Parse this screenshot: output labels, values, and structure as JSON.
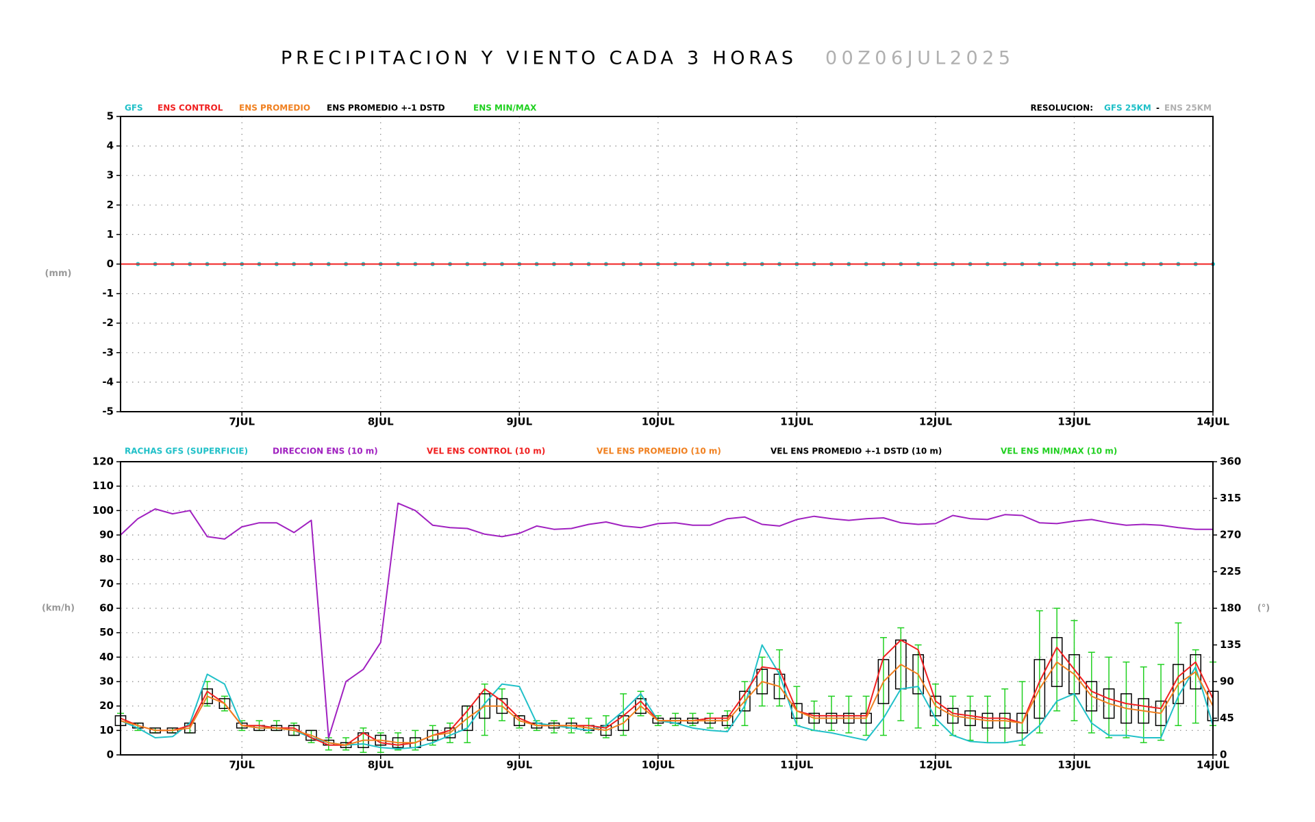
{
  "chart_data": [
    {
      "type": "line",
      "title": "PRECIPITACION Y VIENTO CADA 3 HORAS",
      "subtitle": "00Z06JUL2025",
      "categories": [
        null,
        null,
        null,
        null,
        null,
        null,
        null,
        "7JUL",
        null,
        null,
        null,
        null,
        null,
        null,
        null,
        "8JUL",
        null,
        null,
        null,
        null,
        null,
        null,
        null,
        "9JUL",
        null,
        null,
        null,
        null,
        null,
        null,
        null,
        "10JUL",
        null,
        null,
        null,
        null,
        null,
        null,
        null,
        "11JUL",
        null,
        null,
        null,
        null,
        null,
        null,
        null,
        "12JUL",
        null,
        null,
        null,
        null,
        null,
        null,
        null,
        "13JUL",
        null,
        null,
        null,
        null,
        null,
        null,
        null,
        "14JUL"
      ],
      "ylabel": "(mm)",
      "ylim": [
        -5,
        5
      ],
      "yticks": [
        -5,
        -4,
        -3,
        -2,
        -1,
        0,
        1,
        2,
        3,
        4,
        5
      ],
      "grid": true,
      "resolution": {
        "label": "RESOLUCION:",
        "gfs": "GFS 25KM",
        "sep": "-",
        "ens": "ENS 25KM",
        "ens_color": "#b0b0b0"
      },
      "series": [
        {
          "name": "GFS",
          "color": "#20c0c8",
          "markers": true,
          "values": [
            null,
            0,
            0,
            0,
            0,
            0,
            0,
            0,
            0,
            0,
            0,
            0,
            0,
            0,
            0,
            0,
            0,
            0,
            0,
            0,
            0,
            0,
            0,
            0,
            0,
            0,
            0,
            0,
            0,
            0,
            0,
            0,
            0,
            0,
            0,
            0,
            0,
            0,
            0,
            0,
            0,
            0,
            0,
            0,
            0,
            0,
            0,
            0,
            0,
            0,
            0,
            0,
            0,
            0,
            0,
            0,
            0,
            0,
            0,
            0,
            0,
            0,
            0,
            0
          ]
        },
        {
          "name": "ENS CONTROL",
          "color": "#f02020",
          "values": [
            0,
            0,
            0,
            0,
            0,
            0,
            0,
            0,
            0,
            0,
            0,
            0,
            0,
            0,
            0,
            0,
            0,
            0,
            0,
            0,
            0,
            0,
            0,
            0,
            0,
            0,
            0,
            0,
            0,
            0,
            0,
            0,
            0,
            0,
            0,
            0,
            0,
            0,
            0,
            0,
            0,
            0,
            0,
            0,
            0,
            0,
            0,
            0,
            0,
            0,
            0,
            0,
            0,
            0,
            0,
            0,
            0,
            0,
            0,
            0,
            0,
            0,
            0,
            0
          ]
        },
        {
          "name": "ENS PROMEDIO",
          "color": "#f08020"
        },
        {
          "name": "ENS PROMEDIO +-1 DSTD",
          "color": "#000000"
        },
        {
          "name": "ENS MIN/MAX",
          "color": "#20d020"
        }
      ]
    },
    {
      "type": "line",
      "categories": [
        null,
        null,
        null,
        null,
        null,
        null,
        null,
        "7JUL",
        null,
        null,
        null,
        null,
        null,
        null,
        null,
        "8JUL",
        null,
        null,
        null,
        null,
        null,
        null,
        null,
        "9JUL",
        null,
        null,
        null,
        null,
        null,
        null,
        null,
        "10JUL",
        null,
        null,
        null,
        null,
        null,
        null,
        null,
        "11JUL",
        null,
        null,
        null,
        null,
        null,
        null,
        null,
        "12JUL",
        null,
        null,
        null,
        null,
        null,
        null,
        null,
        "13JUL",
        null,
        null,
        null,
        null,
        null,
        null,
        null,
        "14JUL"
      ],
      "ylabel": "(km/h)",
      "y2label": "(°)",
      "ylim": [
        0,
        120
      ],
      "yticks": [
        0,
        10,
        20,
        30,
        40,
        50,
        60,
        70,
        80,
        90,
        100,
        110,
        120
      ],
      "y2lim": [
        0,
        360
      ],
      "y2ticks": [
        0,
        45,
        90,
        135,
        180,
        225,
        270,
        315,
        360
      ],
      "grid": true,
      "series": [
        {
          "name": "RACHAS GFS (SUPERFICIE)",
          "color": "#20c0c8",
          "mark": "line",
          "values": [
            14,
            11,
            7,
            7.5,
            13,
            33,
            29,
            12,
            11,
            11,
            10,
            7,
            5,
            4,
            4.5,
            3,
            2.5,
            3,
            5,
            8,
            11,
            21,
            29,
            28,
            13,
            12,
            11,
            10,
            12,
            18,
            25,
            14,
            13,
            11,
            10,
            9.5,
            20,
            45,
            33,
            12,
            10,
            9,
            7.5,
            6,
            15,
            27,
            28,
            15,
            8,
            5.5,
            5,
            5,
            6,
            12,
            22,
            25,
            13,
            8,
            8,
            7,
            7,
            24,
            36,
            12
          ]
        },
        {
          "name": "DIRECCION ENS (10 m)",
          "color": "#a020c0",
          "mark": "line",
          "axis": "y2",
          "values": [
            270,
            290,
            302,
            296,
            300,
            268,
            265,
            280,
            285,
            285,
            273,
            288,
            21,
            90,
            105,
            138,
            309,
            300,
            282,
            279,
            278,
            271,
            268,
            272,
            281,
            277,
            278,
            283,
            286,
            281,
            279,
            284,
            285,
            282,
            282,
            290,
            292,
            283,
            281,
            289,
            293,
            290,
            288,
            290,
            291,
            285,
            283,
            284,
            294,
            290,
            289,
            295,
            294,
            285,
            284,
            287,
            289,
            285,
            282,
            283,
            282,
            279,
            277,
            277
          ]
        },
        {
          "name": "VEL ENS CONTROL (10 m)",
          "color": "#f02020",
          "mark": "line",
          "values": [
            15,
            12,
            10,
            10,
            12,
            26,
            21,
            12,
            12,
            11,
            11,
            7,
            4,
            4,
            9,
            5,
            4,
            5,
            8,
            10,
            18,
            27,
            22,
            15,
            12,
            12,
            12,
            12,
            11,
            16,
            22,
            14,
            14,
            14,
            15,
            15,
            25,
            36,
            35,
            18,
            16,
            16,
            16,
            16,
            40,
            47,
            43,
            22,
            17,
            16,
            15,
            15,
            13,
            30,
            44,
            35,
            26,
            23,
            21,
            20,
            19,
            32,
            38,
            23
          ]
        },
        {
          "name": "VEL ENS PROMEDIO (10 m)",
          "color": "#f08020",
          "mark": "line",
          "values": [
            14,
            12,
            10,
            10,
            11,
            24,
            21,
            12,
            11,
            11,
            10,
            8,
            5,
            4,
            6,
            6,
            5,
            5,
            8,
            9,
            15,
            20,
            20,
            14,
            12,
            12,
            12,
            11,
            10,
            13,
            20,
            14,
            14,
            14,
            14,
            14,
            22,
            30,
            28,
            18,
            15,
            15,
            15,
            15,
            30,
            37,
            33,
            20,
            16,
            15,
            14,
            14,
            13,
            27,
            38,
            33,
            24,
            21,
            19,
            18,
            17,
            29,
            34,
            20
          ]
        },
        {
          "name": "VEL ENS PROMEDIO +-1 DSTD (10 m)",
          "color": "#000000",
          "mark": "box",
          "low": [
            12,
            11,
            9,
            9,
            9,
            21,
            19,
            11,
            10,
            10,
            8,
            6,
            4,
            3,
            3,
            4,
            3,
            3,
            6,
            7,
            10,
            15,
            17,
            12,
            11,
            11,
            11,
            10,
            8,
            10,
            17,
            13,
            13,
            13,
            13,
            12,
            18,
            25,
            23,
            15,
            13,
            13,
            13,
            13,
            21,
            27,
            25,
            16,
            13,
            12,
            11,
            11,
            9,
            15,
            28,
            25,
            18,
            15,
            13,
            13,
            12,
            21,
            27,
            14
          ],
          "high": [
            16,
            13,
            11,
            11,
            13,
            27,
            23,
            13,
            12,
            12,
            12,
            10,
            6,
            5,
            9,
            8,
            7,
            7,
            10,
            11,
            20,
            25,
            23,
            16,
            13,
            13,
            13,
            12,
            12,
            16,
            23,
            15,
            15,
            15,
            15,
            16,
            26,
            35,
            33,
            21,
            17,
            17,
            17,
            17,
            39,
            47,
            41,
            24,
            19,
            18,
            17,
            17,
            17,
            39,
            48,
            41,
            30,
            27,
            25,
            23,
            22,
            37,
            41,
            26
          ]
        },
        {
          "name": "VEL ENS MIN/MAX (10 m)",
          "color": "#20d020",
          "mark": "errorbar",
          "low": [
            12,
            10,
            9,
            9,
            9,
            20,
            18,
            10,
            10,
            10,
            8,
            5,
            2,
            2,
            1,
            1,
            2,
            2,
            4,
            5,
            5,
            8,
            14,
            11,
            10,
            9,
            9,
            9,
            7,
            8,
            16,
            12,
            12,
            12,
            11,
            11,
            12,
            20,
            20,
            12,
            10,
            10,
            9,
            8,
            8,
            14,
            11,
            12,
            8,
            6,
            5,
            5,
            4,
            9,
            18,
            14,
            9,
            7,
            7,
            5,
            6,
            12,
            13,
            12
          ],
          "high": [
            17,
            13,
            11,
            11,
            13,
            30,
            24,
            14,
            14,
            14,
            13,
            10,
            7,
            7,
            11,
            9,
            9,
            10,
            12,
            13,
            20,
            29,
            27,
            16,
            14,
            14,
            15,
            15,
            16,
            25,
            26,
            16,
            17,
            17,
            17,
            18,
            30,
            40,
            43,
            28,
            22,
            24,
            24,
            24,
            48,
            52,
            45,
            29,
            24,
            24,
            24,
            27,
            30,
            59,
            60,
            55,
            42,
            40,
            38,
            36,
            37,
            54,
            43,
            38
          ]
        }
      ]
    }
  ]
}
